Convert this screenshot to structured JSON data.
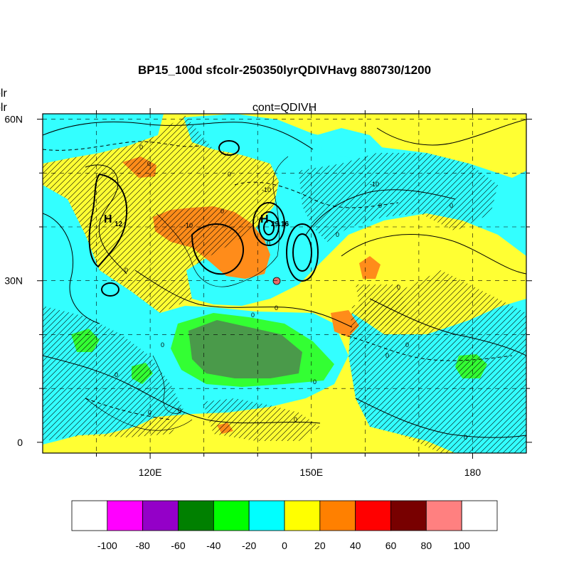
{
  "title": "BP15_100d sfcolr-250350lyrQDIVHavg  880730/1200",
  "subtitle": "cont=QDIVH",
  "side_label_top": "olr",
  "side_label_bottom": "olr",
  "map": {
    "lat_range": [
      -2,
      61
    ],
    "lon_range": [
      100,
      190
    ],
    "lat_ticks": [
      {
        "value": 60,
        "label": "60N"
      },
      {
        "value": 30,
        "label": "30N"
      },
      {
        "value": 0,
        "label": "0"
      }
    ],
    "lon_ticks": [
      {
        "value": 120,
        "label": "120E"
      },
      {
        "value": 150,
        "label": "150E"
      },
      {
        "value": 180,
        "label": "180"
      }
    ],
    "high_centers": [
      {
        "label": "H",
        "value": "12"
      },
      {
        "label": "H",
        "value": "29.16"
      }
    ],
    "contour_labels": [
      "0",
      "-10"
    ],
    "marker_color": "#e86b6b"
  },
  "colorbar": {
    "labels": [
      "-100",
      "-80",
      "-60",
      "-40",
      "-20",
      "0",
      "20",
      "40",
      "60",
      "80",
      "100"
    ],
    "colors": [
      "#ffffff",
      "#ff00ff",
      "#9400c8",
      "#008000",
      "#00ff00",
      "#00ffff",
      "#ffff00",
      "#ff8000",
      "#ff0000",
      "#780000",
      "#ff8080",
      "#ffffff"
    ]
  },
  "colors": {
    "yellow": "#ffff33",
    "cyan": "#33ffff",
    "orange": "#ff8c1a",
    "green": "#33ff33",
    "darkgreen": "#4a9a4a"
  }
}
